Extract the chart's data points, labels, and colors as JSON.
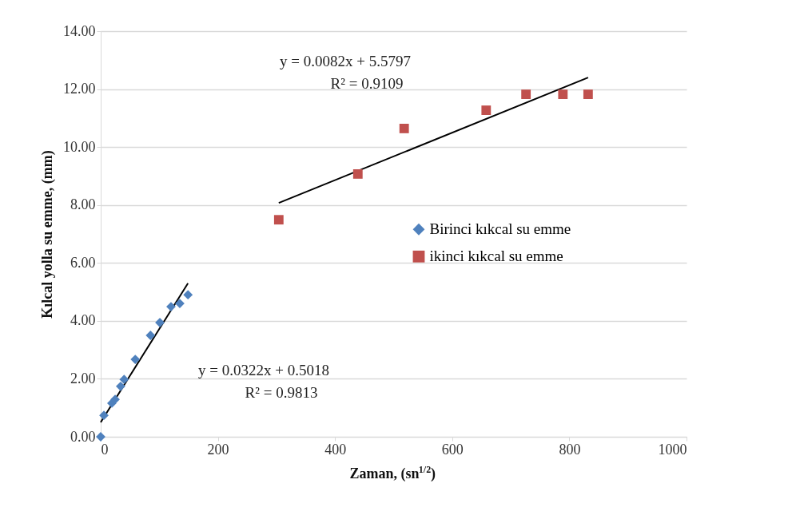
{
  "chart_data": {
    "type": "scatter",
    "xlabel": "Zaman, (sn$^{1/2}$)",
    "ylabel": "Kılcal yolla su emme, (mm)",
    "series": [
      {
        "name": "Birinci kıkcal su emme",
        "type": "scatter",
        "marker": "diamond",
        "color": "#4f81bd",
        "x": [
          0,
          5.5,
          19,
          24.6,
          34,
          40,
          59,
          85,
          101,
          120,
          135,
          149
        ],
        "values": [
          0,
          0.74,
          1.16,
          1.29,
          1.74,
          1.98,
          2.67,
          3.5,
          3.94,
          4.49,
          4.6,
          4.9
        ]
      },
      {
        "name": "ikinci kıkcal su emme",
        "type": "scatter",
        "marker": "square",
        "color": "#c0504d",
        "x": [
          304,
          439,
          518,
          658,
          726,
          789,
          832
        ],
        "values": [
          7.49,
          9.07,
          10.64,
          11.27,
          11.82,
          11.82,
          11.82
        ]
      },
      {
        "type": "line",
        "line_style": "solid",
        "color": "#000000",
        "x": [
          0,
          149
        ],
        "values": [
          0.5,
          5.3
        ]
      },
      {
        "type": "line",
        "line_style": "solid",
        "color": "#000000",
        "x": [
          304,
          832
        ],
        "values": [
          8.07,
          12.4
        ]
      }
    ],
    "xlim": [
      0,
      1000
    ],
    "xticks": [
      0,
      200,
      400,
      600,
      800,
      1000
    ],
    "ylim": [
      0,
      14
    ],
    "yticks": [
      {
        "value": 0,
        "label": "0.00"
      },
      {
        "value": 2,
        "label": "2.00"
      },
      {
        "value": 4,
        "label": "4.00"
      },
      {
        "value": 6,
        "label": "6.00"
      },
      {
        "value": 8,
        "label": "8.00"
      },
      {
        "value": 10,
        "label": "10.00"
      },
      {
        "value": 12,
        "label": "12.00"
      },
      {
        "value": 14,
        "label": "14.00"
      }
    ],
    "grid": "y",
    "legend": "right",
    "annotations": [
      "y = 0.0082x + 5.5797",
      "R² = 0.9109",
      "y = 0.0322x + 0.5018",
      "R² = 0.9813"
    ]
  }
}
